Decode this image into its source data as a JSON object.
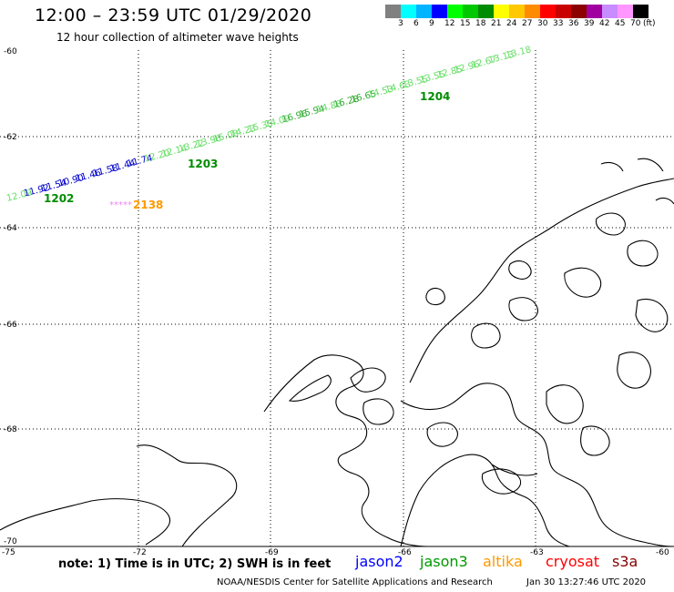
{
  "header": {
    "title": "12:00 – 23:59 UTC 01/29/2020",
    "subtitle": "12 hour collection of altimeter wave heights"
  },
  "colorbar": {
    "colors": [
      "#808080",
      "#00ffff",
      "#00b4ff",
      "#0000ff",
      "#00ff00",
      "#00c800",
      "#008c00",
      "#ffff00",
      "#ffc800",
      "#ff8c00",
      "#ff0000",
      "#c80000",
      "#8c0000",
      "#a000a0",
      "#c88cff",
      "#ff96ff",
      "#000000"
    ],
    "ticks": [
      "3",
      "6",
      "9",
      "12",
      "15",
      "18",
      "21",
      "24",
      "27",
      "30",
      "33",
      "36",
      "39",
      "42",
      "45",
      "70",
      "(ft)"
    ]
  },
  "axes": {
    "lat_labels": [
      "-60",
      "-62",
      "-64",
      "-66",
      "-68",
      "-70"
    ],
    "lon_labels": [
      "-75",
      "-72",
      "-69",
      "-66",
      "-63",
      "-60"
    ]
  },
  "tracks": {
    "jason3_track": [
      {
        "text": "12.09",
        "color": "#66dd66"
      },
      {
        "text": "11.92",
        "color": "#0000cc"
      },
      {
        "text": "11.54",
        "color": "#0000cc"
      },
      {
        "text": "10.90",
        "color": "#0000cc"
      },
      {
        "text": "11.46",
        "color": "#0000cc"
      },
      {
        "text": "11.58",
        "color": "#0000cc"
      },
      {
        "text": "11.44",
        "color": "#0000cc"
      },
      {
        "text": "11.74",
        "color": "#0000cc"
      },
      {
        "text": "12.20",
        "color": "#66dd66"
      },
      {
        "text": "12.14",
        "color": "#66dd66"
      },
      {
        "text": "13.22",
        "color": "#66dd66"
      },
      {
        "text": "13.96",
        "color": "#66dd66"
      },
      {
        "text": "15.08",
        "color": "#66dd66"
      },
      {
        "text": "14.23",
        "color": "#66dd66"
      },
      {
        "text": "15.35",
        "color": "#66dd66"
      },
      {
        "text": "14.09",
        "color": "#66dd66"
      },
      {
        "text": "16.96",
        "color": "#33aa33"
      },
      {
        "text": "15.94",
        "color": "#33aa33"
      },
      {
        "text": "14.88",
        "color": "#66dd66"
      },
      {
        "text": "16.28",
        "color": "#33aa33"
      },
      {
        "text": "16.65",
        "color": "#33aa33"
      },
      {
        "text": "14.53",
        "color": "#66dd66"
      },
      {
        "text": "14.63",
        "color": "#66dd66"
      },
      {
        "text": "13.55",
        "color": "#66dd66"
      },
      {
        "text": "13.55",
        "color": "#66dd66"
      },
      {
        "text": "12.85",
        "color": "#66dd66"
      },
      {
        "text": "12.96",
        "color": "#66dd66"
      },
      {
        "text": "12.67",
        "color": "#66dd66"
      },
      {
        "text": "13.13",
        "color": "#66dd66"
      },
      {
        "text": "13.18",
        "color": "#66dd66"
      }
    ],
    "cycle_labels": [
      {
        "text": "1202",
        "color": "#008c00"
      },
      {
        "text": "1203",
        "color": "#008c00"
      },
      {
        "text": "1204",
        "color": "#008c00"
      }
    ],
    "altika_marker": {
      "stars": "*****",
      "stars_color": "#ee88ee",
      "text": "2138",
      "color": "#ff9900"
    }
  },
  "footer": {
    "note": "note: 1) Time is in UTC; 2) SWH is in feet",
    "satellites": [
      {
        "name": "jason2",
        "color": "#0000ff"
      },
      {
        "name": "jason3",
        "color": "#009900"
      },
      {
        "name": "altika",
        "color": "#ff9900"
      },
      {
        "name": "cryosat",
        "color": "#ff0000"
      },
      {
        "name": "s3a",
        "color": "#880000"
      }
    ],
    "credit": "NOAA/NESDIS Center for Satellite Applications and Research",
    "timestamp": "Jan 30 13:27:46 UTC 2020"
  }
}
